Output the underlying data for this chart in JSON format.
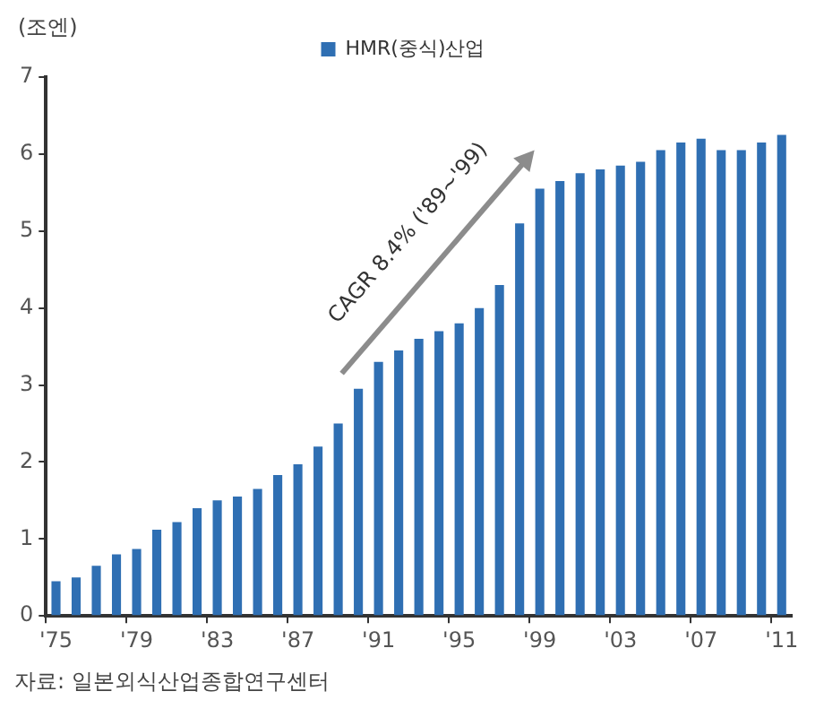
{
  "chart_data": {
    "type": "bar",
    "ylabel": "(조엔)",
    "categories": [
      "'75",
      null,
      null,
      null,
      "'79",
      null,
      null,
      null,
      "'83",
      null,
      null,
      null,
      "'87",
      null,
      null,
      null,
      "'91",
      null,
      null,
      null,
      "'95",
      null,
      null,
      null,
      "'99",
      null,
      null,
      null,
      "'03",
      null,
      null,
      null,
      "'07",
      null,
      null,
      null,
      "'11"
    ],
    "series": [
      {
        "name": "HMR(중식)산업",
        "color": "#2f6fb3",
        "values": [
          0.45,
          0.5,
          0.65,
          0.8,
          0.87,
          1.12,
          1.22,
          1.4,
          1.5,
          1.55,
          1.65,
          1.83,
          1.97,
          2.2,
          2.5,
          2.95,
          3.3,
          3.45,
          3.6,
          3.7,
          3.8,
          4.0,
          4.3,
          5.1,
          5.55,
          5.65,
          5.75,
          5.8,
          5.85,
          5.9,
          6.05,
          6.15,
          6.2,
          6.05,
          6.05,
          6.15,
          6.25
        ]
      }
    ],
    "ylim": [
      0,
      7
    ],
    "yticks": [
      0,
      1,
      2,
      3,
      4,
      5,
      6,
      7
    ],
    "grid": false,
    "legend": "top",
    "annotations": [
      "CAGR 8.4% ('89~'99)",
      "자료: 일본외식산업종합연구센터"
    ]
  }
}
